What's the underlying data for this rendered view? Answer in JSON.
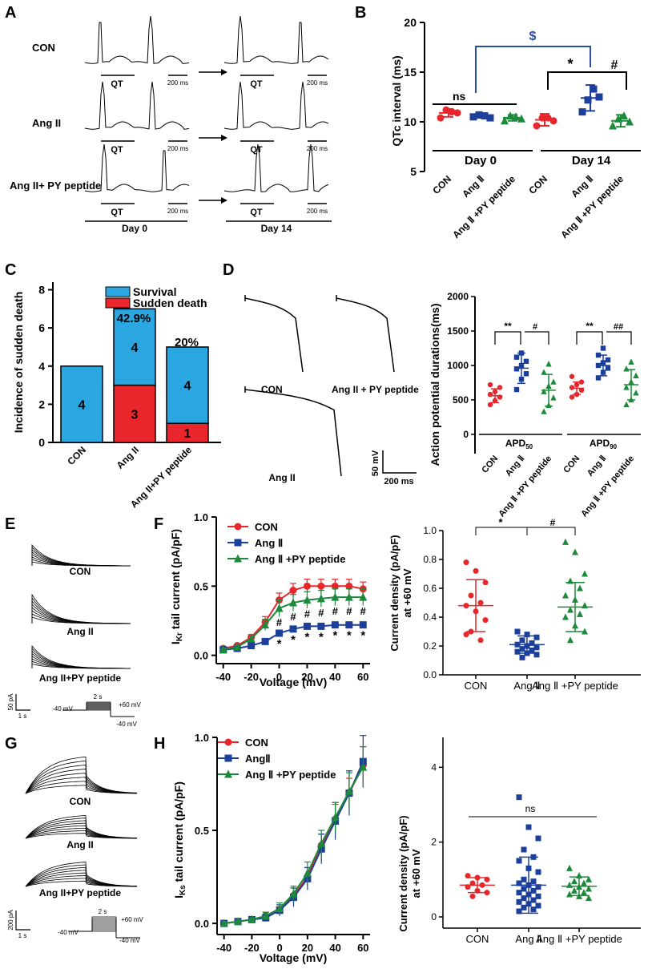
{
  "panels": {
    "A": {
      "letter": "A",
      "rows": [
        "CON",
        "Ang II",
        "Ang II+ PY peptide"
      ],
      "qt_label": "QT",
      "scale_label": "200 ms",
      "day0": "Day 0",
      "day14": "Day 14"
    },
    "B": {
      "letter": "B",
      "ylabel": "QTc interval (ms)",
      "yticks": [
        "20",
        "15",
        "10",
        "5"
      ],
      "xticks": [
        "CON",
        "Ang Ⅱ",
        "Ang Ⅱ +PY peptide",
        "CON",
        "Ang Ⅱ",
        "Ang Ⅱ +PY peptide"
      ],
      "group_day0": "Day 0",
      "group_day14": "Day 14",
      "sig_ns": "ns",
      "sig_dollar": "$",
      "sig_star": "*",
      "sig_hash": "#"
    },
    "C": {
      "letter": "C",
      "ylabel": "Incidence of sudden death",
      "yticks": [
        "8",
        "6",
        "4",
        "2",
        "0"
      ],
      "legend_survival": "Survival",
      "legend_death": "Sudden death",
      "pct_ang": "42.9%",
      "pct_py": "20%",
      "xticks": [
        "CON",
        "Ang II",
        "Ang II+PY peptide"
      ]
    },
    "D": {
      "letter": "D",
      "trace_con": "CON",
      "trace_py": "Ang II + PY peptide",
      "trace_ang": "Ang II",
      "scale_mv": "50 mV",
      "scale_ms": "200 ms",
      "ylabel": "Action potential durations(ms)",
      "yticks": [
        "2000",
        "1500",
        "1000",
        "500",
        "0"
      ],
      "apd50": "APD",
      "apd50_sub": "50",
      "apd90": "APD",
      "apd90_sub": "90",
      "xticks": [
        "CON",
        "Ang Ⅱ",
        "Ang Ⅱ +PY peptide",
        "CON",
        "Ang Ⅱ",
        "Ang Ⅱ +PY peptide"
      ],
      "sig1": "**",
      "sig2": "#",
      "sig3": "**",
      "sig4": "##"
    },
    "E": {
      "letter": "E",
      "labels": [
        "CON",
        "Ang II",
        "Ang II+PY peptide"
      ],
      "scale_pa": "50 pA",
      "scale_s": "1 s",
      "prot_top": "2 s",
      "prot_hold": "-40 mV",
      "prot_pos": "+60 mV",
      "prot_ret": "-40 mV"
    },
    "F": {
      "letter": "F",
      "ylabel_main": "I",
      "ylabel_sub": "Kr",
      "ylabel_rest": " tail current (pA/pF)",
      "xlabel": "Voltage (mV)",
      "yticks": [
        "1.0",
        "0.5",
        "0.0"
      ],
      "xticks": [
        "-40",
        "-20",
        "0",
        "20",
        "40",
        "60"
      ],
      "legend": [
        "CON",
        "Ang Ⅱ",
        "Ang Ⅱ +PY peptide"
      ],
      "scatter_ylabel": "Current density (pA/pF)",
      "scatter_ylabel2": "at +60 mV",
      "scatter_yticks": [
        "1.0",
        "0.8",
        "0.6",
        "0.4",
        "0.2",
        "0.0"
      ],
      "scatter_xticks": [
        "CON",
        "Ang Ⅱ",
        "Ang Ⅱ +PY peptide"
      ],
      "sig_star": "*",
      "sig_hash": "#"
    },
    "G": {
      "letter": "G",
      "labels": [
        "CON",
        "Ang II",
        "Ang II+PY peptide"
      ],
      "scale_pa": "200 pA",
      "scale_s": "1 s",
      "prot_top": "2 s",
      "prot_hold": "-40 mV",
      "prot_pos": "+60 mV",
      "prot_ret": "-40 mV"
    },
    "H": {
      "letter": "H",
      "ylabel_main": "I",
      "ylabel_sub": "Ks",
      "ylabel_rest": " tail current (pA/pF)",
      "xlabel": "Voltage (mV)",
      "yticks": [
        "1.0",
        "0.5",
        "0.0"
      ],
      "xticks": [
        "-40",
        "-20",
        "0",
        "20",
        "40",
        "60"
      ],
      "legend": [
        "CON",
        "AngⅡ",
        "Ang Ⅱ +PY peptide"
      ],
      "scatter_ylabel": "Current density (pA/pF)",
      "scatter_ylabel2": "at +60 mV",
      "scatter_yticks": [
        "4",
        "2",
        "0"
      ],
      "scatter_xticks": [
        "CON",
        "Ang Ⅱ",
        "Ang Ⅱ +PY peptide"
      ],
      "sig_ns": "ns"
    }
  },
  "colors": {
    "con": "#e8262b",
    "ang": "#1b3f9a",
    "py": "#1d8a3b",
    "survival": "#2aa6e0",
    "death": "#e8262b",
    "blue_sig": "#2a4da3"
  },
  "chart_data": [
    {
      "id": "B",
      "type": "scatter",
      "title": "",
      "ylabel": "QTc interval (ms)",
      "ylim": [
        5,
        20
      ],
      "groups": [
        {
          "name": "CON Day 0",
          "values": [
            10.4,
            11.2,
            11.0,
            10.9
          ],
          "mean": 10.9,
          "sd": 0.4
        },
        {
          "name": "Ang II Day 0",
          "values": [
            10.5,
            10.7,
            10.6,
            10.4
          ],
          "mean": 10.6,
          "sd": 0.2
        },
        {
          "name": "Ang II+PY Day 0",
          "values": [
            10.1,
            10.6,
            10.5,
            10.3
          ],
          "mean": 10.4,
          "sd": 0.3
        },
        {
          "name": "CON Day 14",
          "values": [
            9.6,
            10.4,
            10.4,
            10.1
          ],
          "mean": 10.2,
          "sd": 0.6
        },
        {
          "name": "Ang II Day 14",
          "values": [
            11.0,
            12.2,
            13.3,
            12.5
          ],
          "mean": 12.4,
          "sd": 1.3
        },
        {
          "name": "Ang II+PY Day 14",
          "values": [
            9.6,
            10.3,
            10.6,
            10.0
          ],
          "mean": 10.1,
          "sd": 0.6
        }
      ]
    },
    {
      "id": "C",
      "type": "bar",
      "stacked": true,
      "ylabel": "Incidence of sudden death",
      "ylim": [
        0,
        8
      ],
      "categories": [
        "CON",
        "Ang II",
        "Ang II+PY peptide"
      ],
      "series": [
        {
          "name": "Sudden death",
          "values": [
            0,
            3,
            1
          ]
        },
        {
          "name": "Survival",
          "values": [
            4,
            4,
            4
          ]
        }
      ],
      "annotations": [
        "42.9%",
        "20%"
      ]
    },
    {
      "id": "D",
      "type": "scatter",
      "ylabel": "Action potential durations(ms)",
      "ylim": [
        0,
        2000
      ],
      "groups": [
        {
          "name": "APD50 CON",
          "values": [
            430,
            490,
            540,
            580,
            620,
            680,
            720
          ],
          "mean": 560,
          "sd": 100
        },
        {
          "name": "APD50 Ang II",
          "values": [
            650,
            800,
            880,
            950,
            1000,
            1060,
            1120,
            1180
          ],
          "mean": 960,
          "sd": 220
        },
        {
          "name": "APD50 Ang II+PY",
          "values": [
            330,
            420,
            530,
            620,
            700,
            760,
            900,
            1020
          ],
          "mean": 640,
          "sd": 230
        },
        {
          "name": "APD90 CON",
          "values": [
            540,
            580,
            640,
            680,
            720,
            760,
            840
          ],
          "mean": 670,
          "sd": 90
        },
        {
          "name": "APD90 Ang II",
          "values": [
            820,
            900,
            960,
            1000,
            1040,
            1080,
            1150,
            1250
          ],
          "mean": 1000,
          "sd": 150
        },
        {
          "name": "APD90 Ang II+PY",
          "values": [
            430,
            500,
            600,
            680,
            760,
            850,
            950,
            1050
          ],
          "mean": 720,
          "sd": 220
        }
      ]
    },
    {
      "id": "F-line",
      "type": "line",
      "xlabel": "Voltage (mV)",
      "ylabel": "IKr tail current (pA/pF)",
      "ylim": [
        0,
        1.0
      ],
      "x": [
        -40,
        -30,
        -20,
        -10,
        0,
        10,
        20,
        30,
        40,
        50,
        60
      ],
      "series": [
        {
          "name": "CON",
          "values": [
            0.05,
            0.07,
            0.13,
            0.24,
            0.4,
            0.47,
            0.5,
            0.5,
            0.5,
            0.5,
            0.48
          ],
          "err": [
            0.01,
            0.01,
            0.02,
            0.04,
            0.05,
            0.05,
            0.05,
            0.05,
            0.05,
            0.05,
            0.05
          ]
        },
        {
          "name": "Ang II",
          "values": [
            0.04,
            0.05,
            0.07,
            0.1,
            0.16,
            0.19,
            0.21,
            0.21,
            0.22,
            0.22,
            0.22
          ],
          "err": [
            0.01,
            0.01,
            0.01,
            0.01,
            0.02,
            0.02,
            0.02,
            0.02,
            0.02,
            0.02,
            0.02
          ]
        },
        {
          "name": "Ang II+PY peptide",
          "values": [
            0.04,
            0.06,
            0.12,
            0.22,
            0.34,
            0.38,
            0.4,
            0.41,
            0.42,
            0.42,
            0.42
          ],
          "err": [
            0.01,
            0.01,
            0.02,
            0.04,
            0.06,
            0.06,
            0.06,
            0.06,
            0.06,
            0.06,
            0.06
          ]
        }
      ]
    },
    {
      "id": "F-scatter",
      "type": "scatter",
      "ylabel": "Current density (pA/pF) at +60 mV",
      "ylim": [
        0,
        1.0
      ],
      "categories": [
        "CON",
        "Ang II",
        "Ang II+PY peptide"
      ],
      "groups": [
        {
          "name": "CON",
          "values": [
            0.78,
            0.72,
            0.64,
            0.55,
            0.5,
            0.48,
            0.44,
            0.38,
            0.3,
            0.24,
            0.28
          ],
          "mean": 0.48,
          "sd": 0.18
        },
        {
          "name": "Ang II",
          "values": [
            0.3,
            0.28,
            0.26,
            0.24,
            0.22,
            0.21,
            0.2,
            0.19,
            0.18,
            0.17,
            0.16,
            0.15,
            0.14,
            0.12
          ],
          "mean": 0.21,
          "sd": 0.06
        },
        {
          "name": "Ang II+PY peptide",
          "values": [
            0.92,
            0.85,
            0.7,
            0.65,
            0.6,
            0.55,
            0.52,
            0.48,
            0.45,
            0.42,
            0.4,
            0.34,
            0.3,
            0.24
          ],
          "mean": 0.47,
          "sd": 0.17
        }
      ]
    },
    {
      "id": "H-line",
      "type": "line",
      "xlabel": "Voltage (mV)",
      "ylabel": "IKs tail current (pA/pF)",
      "ylim": [
        0,
        1.0
      ],
      "x": [
        -40,
        -30,
        -20,
        -10,
        0,
        10,
        20,
        30,
        40,
        50,
        60
      ],
      "series": [
        {
          "name": "CON",
          "values": [
            0.0,
            0.01,
            0.02,
            0.04,
            0.07,
            0.15,
            0.25,
            0.42,
            0.56,
            0.7,
            0.85
          ],
          "err": [
            0.01,
            0.01,
            0.01,
            0.02,
            0.02,
            0.04,
            0.05,
            0.06,
            0.08,
            0.08,
            0.1
          ]
        },
        {
          "name": "Ang II",
          "values": [
            0.0,
            0.01,
            0.02,
            0.03,
            0.07,
            0.14,
            0.24,
            0.4,
            0.55,
            0.7,
            0.87
          ],
          "err": [
            0.01,
            0.01,
            0.01,
            0.02,
            0.03,
            0.05,
            0.06,
            0.08,
            0.1,
            0.12,
            0.14
          ]
        },
        {
          "name": "Ang II+PY peptide",
          "values": [
            0.0,
            0.01,
            0.02,
            0.04,
            0.08,
            0.16,
            0.27,
            0.43,
            0.57,
            0.71,
            0.84
          ],
          "err": [
            0.01,
            0.01,
            0.01,
            0.02,
            0.03,
            0.04,
            0.06,
            0.07,
            0.08,
            0.1,
            0.11
          ]
        }
      ]
    },
    {
      "id": "H-scatter",
      "type": "scatter",
      "ylabel": "Current density (pA/pF) at +60 mV",
      "ylim": [
        -0.3,
        4.8
      ],
      "categories": [
        "CON",
        "Ang II",
        "Ang II+PY peptide"
      ],
      "groups": [
        {
          "name": "CON",
          "values": [
            1.1,
            1.05,
            1.0,
            0.9,
            0.85,
            0.8,
            0.7,
            0.65,
            0.55
          ],
          "mean": 0.85,
          "sd": 0.2
        },
        {
          "name": "Ang II",
          "values": [
            3.2,
            2.4,
            2.1,
            1.8,
            1.6,
            1.5,
            1.3,
            1.2,
            1.0,
            0.95,
            0.9,
            0.85,
            0.8,
            0.75,
            0.7,
            0.65,
            0.6,
            0.55,
            0.5,
            0.45,
            0.4,
            0.35,
            0.3,
            0.25,
            0.2,
            0.15
          ],
          "mean": 0.85,
          "sd": 0.75
        },
        {
          "name": "Ang II+PY peptide",
          "values": [
            1.3,
            1.1,
            1.0,
            0.95,
            0.9,
            0.85,
            0.8,
            0.75,
            0.7,
            0.65,
            0.6,
            0.55,
            0.5
          ],
          "mean": 0.82,
          "sd": 0.25
        }
      ]
    }
  ]
}
